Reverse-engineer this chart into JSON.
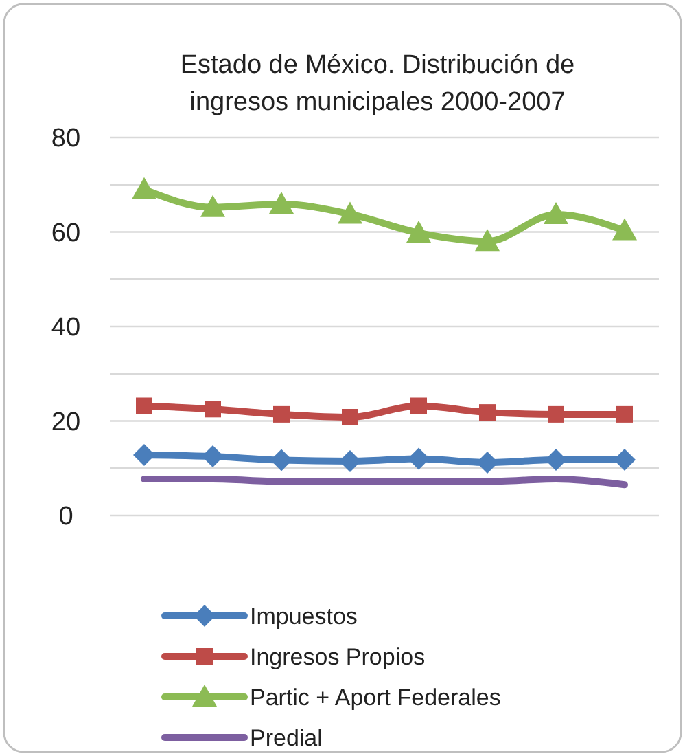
{
  "chart_data": {
    "type": "line",
    "title": "Estado de México. Distribución de ingresos municipales 2000-2007",
    "categories": [
      null,
      null,
      null,
      null,
      null,
      null,
      null,
      null
    ],
    "ylim": [
      0,
      80
    ],
    "yticks": [
      0,
      {
        "value": 10,
        "label": null
      },
      20,
      {
        "value": 30,
        "label": null
      },
      40,
      {
        "value": 50,
        "label": null
      },
      60,
      {
        "value": 70,
        "label": null
      },
      80
    ],
    "grid": "y",
    "legend": "bottom",
    "series": [
      {
        "name": "Impuestos",
        "color": "#4a7ebb",
        "marker": "diamond",
        "values": [
          12.8,
          12.5,
          11.7,
          11.5,
          12.0,
          11.2,
          11.8,
          11.8
        ]
      },
      {
        "name": "Ingresos Propios",
        "color": "#be4b48",
        "marker": "square",
        "values": [
          23.2,
          22.5,
          21.4,
          20.8,
          23.2,
          21.8,
          21.4,
          21.4
        ]
      },
      {
        "name": "Partic + Aport Federales",
        "color": "#8cbb54",
        "marker": "triangle",
        "values": [
          69,
          65.2,
          65.9,
          63.8,
          59.8,
          58,
          63.7,
          60.3
        ]
      },
      {
        "name": "Predial",
        "color": "#7d5fa0",
        "marker": "none",
        "values": [
          7.7,
          7.7,
          7.2,
          7.2,
          7.2,
          7.2,
          7.7,
          6.5
        ]
      }
    ]
  }
}
